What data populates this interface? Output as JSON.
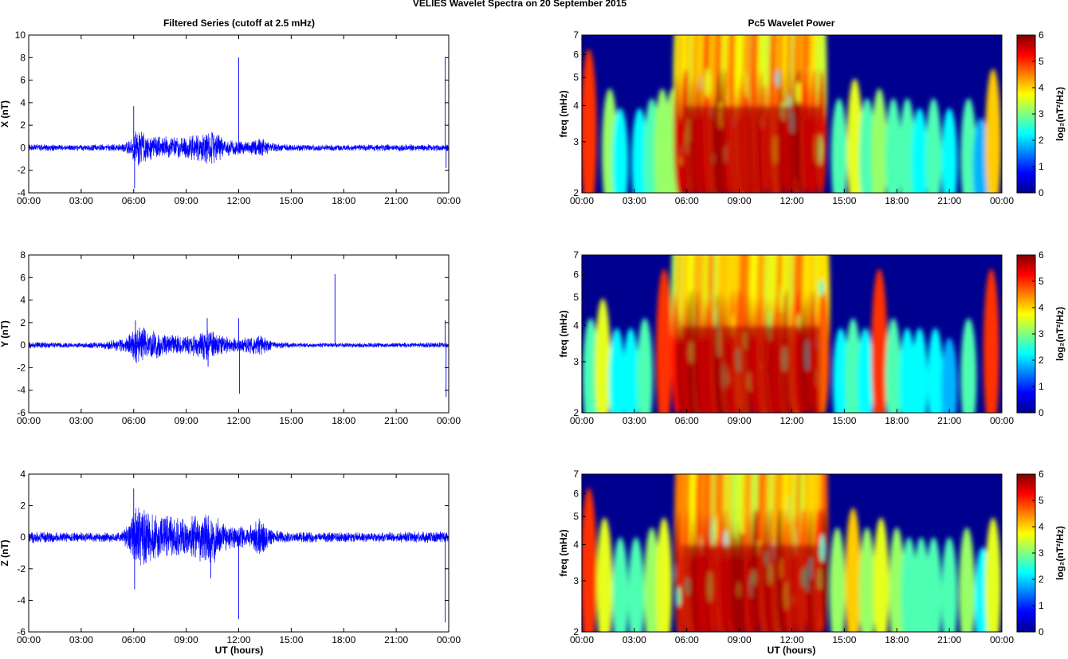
{
  "figure": {
    "suptitle": "VELIES Wavelet Spectra on 20 September 2015",
    "left_title": "Filtered Series (cutoff at 2.5 mHz)",
    "right_title": "Pc5 Wavelet Power",
    "xlabel": "UT (hours)"
  },
  "colormap": {
    "name": "jet",
    "stops": [
      "#00008f",
      "#0000ff",
      "#0080ff",
      "#00ffff",
      "#80ff80",
      "#ffff00",
      "#ff8000",
      "#ff0000",
      "#800000"
    ]
  },
  "chart_data": [
    {
      "type": "line",
      "name": "X filtered series",
      "ylabel": "X (nT)",
      "x_range_hours": [
        0,
        24
      ],
      "xticks": [
        "00:00",
        "03:00",
        "06:00",
        "09:00",
        "12:00",
        "15:00",
        "18:00",
        "21:00",
        "00:00"
      ],
      "ylim": [
        -4,
        10
      ],
      "yticks": [
        -4,
        -2,
        0,
        2,
        4,
        6,
        8,
        10
      ],
      "line_color": "#0000ff",
      "envelope": [
        [
          0,
          0.3
        ],
        [
          1,
          0.3
        ],
        [
          2,
          0.25
        ],
        [
          3,
          0.25
        ],
        [
          4,
          0.3
        ],
        [
          5.3,
          0.3
        ],
        [
          5.9,
          0.8
        ],
        [
          6.1,
          1.6
        ],
        [
          7,
          1.1
        ],
        [
          8,
          1.0
        ],
        [
          9,
          0.9
        ],
        [
          10.4,
          1.6
        ],
        [
          11.2,
          0.8
        ],
        [
          12.5,
          0.5
        ],
        [
          13.4,
          0.9
        ],
        [
          13.8,
          0.4
        ],
        [
          15,
          0.3
        ],
        [
          16,
          0.3
        ],
        [
          18,
          0.25
        ],
        [
          20,
          0.3
        ],
        [
          22,
          0.3
        ],
        [
          23.9,
          0.3
        ]
      ],
      "spikes": [
        [
          6.0,
          3.7
        ],
        [
          6.05,
          -3.6
        ],
        [
          12.0,
          8.0
        ],
        [
          12.05,
          -0.3
        ],
        [
          23.8,
          8.0
        ],
        [
          23.85,
          -1.8
        ]
      ]
    },
    {
      "type": "line",
      "name": "Y filtered series",
      "ylabel": "Y (nT)",
      "x_range_hours": [
        0,
        24
      ],
      "xticks": [
        "00:00",
        "03:00",
        "06:00",
        "09:00",
        "12:00",
        "15:00",
        "18:00",
        "21:00",
        "00:00"
      ],
      "ylim": [
        -6,
        8
      ],
      "yticks": [
        -6,
        -4,
        -2,
        0,
        2,
        4,
        6,
        8
      ],
      "line_color": "#0000ff",
      "envelope": [
        [
          0,
          0.3
        ],
        [
          1,
          0.25
        ],
        [
          3,
          0.2
        ],
        [
          4.5,
          0.4
        ],
        [
          5.5,
          0.6
        ],
        [
          6.2,
          1.7
        ],
        [
          7,
          1.3
        ],
        [
          8,
          0.9
        ],
        [
          9,
          0.8
        ],
        [
          10.3,
          1.4
        ],
        [
          11,
          0.8
        ],
        [
          12,
          0.6
        ],
        [
          13.3,
          0.9
        ],
        [
          14,
          0.3
        ],
        [
          16,
          0.2
        ],
        [
          18,
          0.2
        ],
        [
          20,
          0.2
        ],
        [
          23.9,
          0.25
        ]
      ],
      "spikes": [
        [
          6.1,
          2.2
        ],
        [
          6.15,
          -1.6
        ],
        [
          10.2,
          2.4
        ],
        [
          10.25,
          -1.9
        ],
        [
          12.0,
          2.4
        ],
        [
          12.05,
          -4.3
        ],
        [
          17.5,
          6.3
        ],
        [
          23.8,
          2.2
        ],
        [
          23.85,
          -4.6
        ]
      ]
    },
    {
      "type": "line",
      "name": "Z filtered series",
      "ylabel": "Z (nT)",
      "x_range_hours": [
        0,
        24
      ],
      "xticks": [
        "00:00",
        "03:00",
        "06:00",
        "09:00",
        "12:00",
        "15:00",
        "18:00",
        "21:00",
        "00:00"
      ],
      "ylim": [
        -6,
        4
      ],
      "yticks": [
        -6,
        -4,
        -2,
        0,
        2,
        4
      ],
      "line_color": "#0000ff",
      "envelope": [
        [
          0,
          0.4
        ],
        [
          1,
          0.35
        ],
        [
          2,
          0.3
        ],
        [
          3,
          0.3
        ],
        [
          4,
          0.3
        ],
        [
          5.3,
          0.3
        ],
        [
          5.9,
          1.2
        ],
        [
          6.2,
          2.0
        ],
        [
          7,
          1.5
        ],
        [
          8,
          1.3
        ],
        [
          9,
          1.2
        ],
        [
          9.8,
          1.5
        ],
        [
          10.5,
          1.8
        ],
        [
          11,
          0.9
        ],
        [
          12.5,
          0.6
        ],
        [
          13.3,
          1.3
        ],
        [
          13.8,
          0.5
        ],
        [
          15,
          0.3
        ],
        [
          16,
          0.35
        ],
        [
          18,
          0.3
        ],
        [
          20,
          0.3
        ],
        [
          22,
          0.35
        ],
        [
          23.9,
          0.35
        ]
      ],
      "spikes": [
        [
          6.0,
          3.1
        ],
        [
          6.05,
          -3.3
        ],
        [
          10.4,
          -2.6
        ],
        [
          12.0,
          -5.2
        ],
        [
          23.8,
          -5.4
        ]
      ]
    },
    {
      "type": "heatmap",
      "name": "X wavelet power",
      "ylabel": "freq (mHz)",
      "y_scale": "log",
      "ylim": [
        2,
        7
      ],
      "yticks": [
        2,
        3,
        4,
        5,
        6,
        7
      ],
      "xticks": [
        "00:00",
        "03:00",
        "06:00",
        "09:00",
        "12:00",
        "15:00",
        "18:00",
        "21:00",
        "00:00"
      ],
      "colorbar": {
        "label": "log₂(nT²/Hz)",
        "ticks": [
          0,
          1,
          2,
          3,
          4,
          5,
          6
        ],
        "range": [
          0,
          6
        ]
      },
      "active_band_hours": [
        5.5,
        13.8
      ],
      "bursts": [
        [
          0.4,
          5.5
        ],
        [
          1.6,
          3.5
        ],
        [
          2.2,
          2.5
        ],
        [
          3.3,
          2.5
        ],
        [
          4.0,
          3.0
        ],
        [
          4.6,
          3.5
        ],
        [
          5.2,
          3.5
        ],
        [
          14.7,
          3.0
        ],
        [
          15.6,
          4.0
        ],
        [
          16.3,
          3.0
        ],
        [
          17.0,
          3.5
        ],
        [
          17.8,
          3.0
        ],
        [
          18.6,
          3.0
        ],
        [
          19.3,
          2.5
        ],
        [
          20.1,
          3.0
        ],
        [
          21.0,
          2.5
        ],
        [
          22.1,
          3.0
        ],
        [
          22.8,
          2.0
        ],
        [
          23.5,
          4.5
        ]
      ]
    },
    {
      "type": "heatmap",
      "name": "Y wavelet power",
      "ylabel": "freq (mHz)",
      "y_scale": "log",
      "ylim": [
        2,
        7
      ],
      "yticks": [
        2,
        3,
        4,
        5,
        6,
        7
      ],
      "xticks": [
        "00:00",
        "03:00",
        "06:00",
        "09:00",
        "12:00",
        "15:00",
        "18:00",
        "21:00",
        "00:00"
      ],
      "colorbar": {
        "label": "log₂(nT²/Hz)",
        "ticks": [
          0,
          1,
          2,
          3,
          4,
          5,
          6
        ],
        "range": [
          0,
          6
        ]
      },
      "active_band_hours": [
        5.5,
        13.8
      ],
      "bursts": [
        [
          0.5,
          3.0
        ],
        [
          1.2,
          4.0
        ],
        [
          2.0,
          2.5
        ],
        [
          2.8,
          2.5
        ],
        [
          3.6,
          3.0
        ],
        [
          4.7,
          5.5
        ],
        [
          14.8,
          2.5
        ],
        [
          15.5,
          3.0
        ],
        [
          16.2,
          2.5
        ],
        [
          17.0,
          5.5
        ],
        [
          17.8,
          3.0
        ],
        [
          18.6,
          2.5
        ],
        [
          19.3,
          2.5
        ],
        [
          20.2,
          2.5
        ],
        [
          21.0,
          2.0
        ],
        [
          22.1,
          3.0
        ],
        [
          23.4,
          5.5
        ]
      ]
    },
    {
      "type": "heatmap",
      "name": "Z wavelet power",
      "ylabel": "freq (mHz)",
      "y_scale": "log",
      "ylim": [
        2,
        7
      ],
      "yticks": [
        2,
        3,
        4,
        5,
        6,
        7
      ],
      "xticks": [
        "00:00",
        "03:00",
        "06:00",
        "09:00",
        "12:00",
        "15:00",
        "18:00",
        "21:00",
        "00:00"
      ],
      "colorbar": {
        "label": "log₂(nT²/Hz)",
        "ticks": [
          0,
          1,
          2,
          3,
          4,
          5,
          6
        ],
        "range": [
          0,
          6
        ]
      },
      "active_band_hours": [
        5.5,
        13.8
      ],
      "bursts": [
        [
          0.4,
          5.5
        ],
        [
          1.3,
          4.0
        ],
        [
          2.2,
          3.0
        ],
        [
          3.1,
          3.0
        ],
        [
          4.0,
          3.5
        ],
        [
          4.7,
          4.0
        ],
        [
          14.6,
          3.5
        ],
        [
          15.5,
          4.5
        ],
        [
          16.3,
          3.5
        ],
        [
          17.1,
          4.0
        ],
        [
          18.0,
          3.5
        ],
        [
          18.7,
          3.0
        ],
        [
          19.4,
          3.0
        ],
        [
          20.1,
          3.0
        ],
        [
          21.0,
          3.0
        ],
        [
          22.0,
          3.5
        ],
        [
          22.9,
          2.5
        ],
        [
          23.5,
          4.0
        ]
      ]
    }
  ]
}
